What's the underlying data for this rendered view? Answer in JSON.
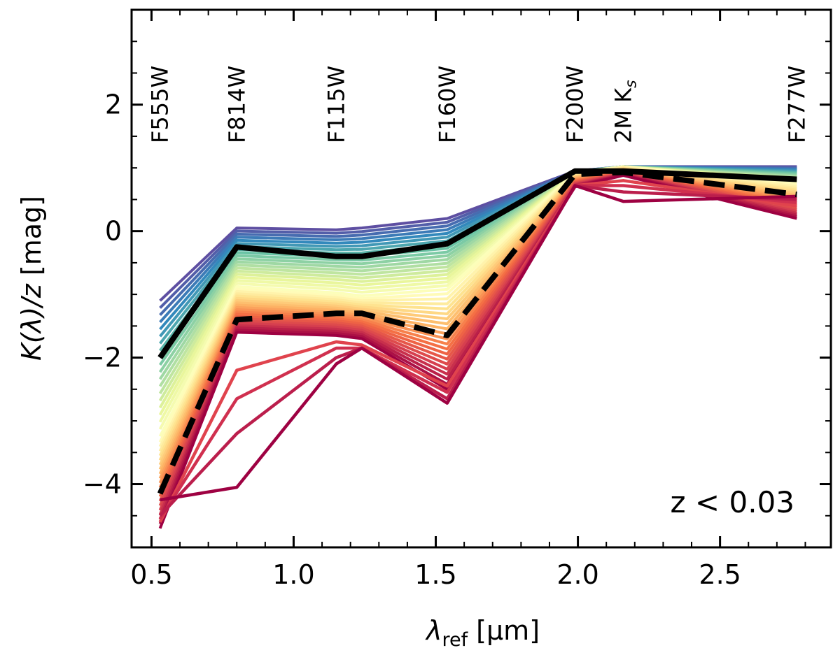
{
  "chart_data": {
    "type": "line",
    "xlabel_main": "λ",
    "xlabel_sub": "ref",
    "xlabel_unit": " [μm]",
    "ylabel_italic": "K(λ)/z",
    "ylabel_unit": " [mag]",
    "xlim": [
      0.43,
      2.89
    ],
    "ylim": [
      -5.0,
      3.5
    ],
    "x_ticks": [
      0.5,
      1.0,
      1.5,
      2.0,
      2.5
    ],
    "x_tick_labels": [
      "0.5",
      "1.0",
      "1.5",
      "2.0",
      "2.5"
    ],
    "y_ticks": [
      -4,
      -2,
      0,
      2
    ],
    "y_tick_labels": [
      "−4",
      "−2",
      "0",
      "2"
    ],
    "annotation": "z < 0.03",
    "filters": [
      {
        "label": "F555W",
        "x": 0.53
      },
      {
        "label": "F814W",
        "x": 0.8
      },
      {
        "label": "F115W",
        "x": 1.15
      },
      {
        "label": "F160W",
        "x": 1.54
      },
      {
        "label": "F200W",
        "x": 1.99
      },
      {
        "label": "2M K",
        "sub": "s",
        "x": 2.16
      },
      {
        "label": "F277W",
        "x": 2.77
      }
    ],
    "x": [
      0.53,
      0.8,
      1.15,
      1.24,
      1.54,
      1.99,
      2.16,
      2.77
    ],
    "family_count": 40,
    "family_colors": [
      "#5e4fa2",
      "#3288bd",
      "#66c2a5",
      "#abdda4",
      "#e6f598",
      "#ffffbf",
      "#fee08b",
      "#fdae61",
      "#f46d43",
      "#d53e4f",
      "#9e0142"
    ],
    "family_top": [
      -1.1,
      0.05,
      0.02,
      0.05,
      0.2,
      0.95,
      1.02,
      1.02
    ],
    "family_mid": [
      -3.3,
      -0.9,
      -1.0,
      -1.05,
      -0.95,
      0.92,
      1.02,
      0.75
    ],
    "family_bottom": [
      -4.7,
      -1.6,
      -1.65,
      -1.7,
      -2.5,
      0.7,
      0.88,
      0.2
    ],
    "red_lines": [
      {
        "name": "red-line-1",
        "values": [
          -4.6,
          -2.2,
          -1.75,
          -1.8,
          -2.45,
          0.72,
          0.8,
          0.4
        ]
      },
      {
        "name": "red-line-2",
        "values": [
          -4.55,
          -2.65,
          -1.85,
          -1.85,
          -2.55,
          0.72,
          0.72,
          0.45
        ]
      },
      {
        "name": "red-line-3",
        "values": [
          -4.5,
          -3.2,
          -2.0,
          -1.85,
          -2.65,
          0.72,
          0.62,
          0.5
        ]
      },
      {
        "name": "red-line-4",
        "values": [
          -4.25,
          -4.05,
          -2.1,
          -1.85,
          -2.72,
          0.72,
          0.47,
          0.55
        ]
      }
    ],
    "series": [
      {
        "name": "solid-black",
        "style": "solid",
        "values": [
          -2.0,
          -0.25,
          -0.4,
          -0.4,
          -0.2,
          0.95,
          0.95,
          0.82
        ]
      },
      {
        "name": "dashed-black",
        "style": "dashed",
        "values": [
          -4.15,
          -1.4,
          -1.3,
          -1.3,
          -1.65,
          0.9,
          0.93,
          0.58
        ]
      }
    ]
  }
}
